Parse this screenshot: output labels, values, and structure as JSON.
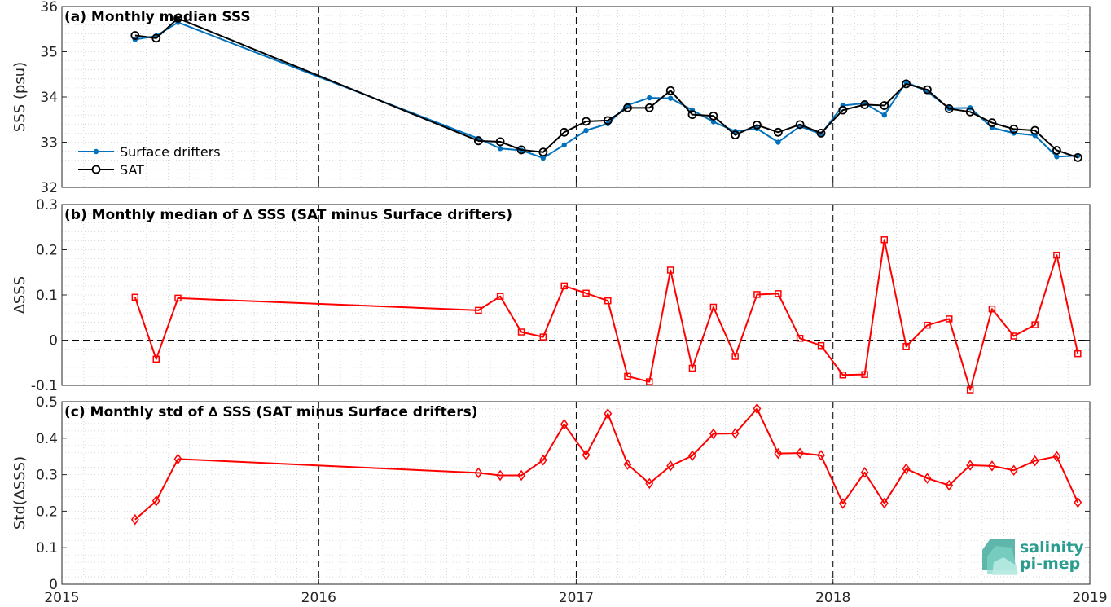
{
  "logo": {
    "line1": "salinity",
    "line2": "pi-mep"
  },
  "chart_data": [
    {
      "type": "line",
      "title": "(a) Monthly median SSS",
      "xlabel": "",
      "ylabel": "SSS (psu)",
      "x_ticks": [
        "2015",
        "2016",
        "2017",
        "2018",
        "2019"
      ],
      "xlim": [
        "2015-01-01",
        "2019-01-01"
      ],
      "ylim": [
        32,
        36
      ],
      "y_ticks": [
        "32",
        "33",
        "34",
        "35",
        "36"
      ],
      "grid": true,
      "legend": "lower-left",
      "x": [
        "2015-04-15",
        "2015-05-15",
        "2015-06-15",
        "2016-08-15",
        "2016-09-15",
        "2016-10-15",
        "2016-11-15",
        "2016-12-15",
        "2017-01-15",
        "2017-02-15",
        "2017-03-15",
        "2017-04-15",
        "2017-05-15",
        "2017-06-15",
        "2017-07-15",
        "2017-08-15",
        "2017-09-15",
        "2017-10-15",
        "2017-11-15",
        "2017-12-15",
        "2018-01-15",
        "2018-02-15",
        "2018-03-15",
        "2018-04-15",
        "2018-05-15",
        "2018-06-15",
        "2018-07-15",
        "2018-08-15",
        "2018-09-15",
        "2018-10-15",
        "2018-11-15",
        "2018-12-15"
      ],
      "series": [
        {
          "name": "Surface drifters",
          "color": "#0072bd",
          "marker": "dot",
          "values": [
            35.27,
            35.35,
            35.65,
            33.08,
            32.86,
            32.82,
            32.65,
            32.94,
            33.26,
            33.41,
            33.82,
            33.98,
            33.97,
            33.71,
            33.45,
            33.24,
            33.3,
            33.0,
            33.35,
            33.18,
            33.81,
            33.86,
            33.6,
            34.33,
            34.12,
            33.75,
            33.76,
            33.32,
            33.2,
            33.15,
            32.68,
            32.7
          ]
        },
        {
          "name": "SAT",
          "color": "#000000",
          "marker": "circle",
          "values": [
            35.36,
            35.3,
            35.74,
            33.03,
            33.01,
            32.83,
            32.78,
            33.22,
            33.46,
            33.48,
            33.76,
            33.76,
            34.14,
            33.61,
            33.58,
            33.16,
            33.38,
            33.22,
            33.39,
            33.2,
            33.71,
            33.83,
            33.81,
            34.29,
            34.16,
            33.74,
            33.67,
            33.43,
            33.29,
            33.26,
            32.82,
            32.66
          ]
        }
      ]
    },
    {
      "type": "line",
      "title": "(b) Monthly median of ∆ SSS (SAT minus Surface drifters)",
      "xlabel": "",
      "ylabel": "∆SSS",
      "x_ticks": [
        "2015",
        "2016",
        "2017",
        "2018",
        "2019"
      ],
      "xlim": [
        "2015-01-01",
        "2019-01-01"
      ],
      "ylim": [
        -0.1,
        0.3
      ],
      "y_ticks": [
        "-0.1",
        "0",
        "0.1",
        "0.2",
        "0.3"
      ],
      "grid": true,
      "zero_line": true,
      "x": [
        "2015-04-15",
        "2015-05-15",
        "2015-06-15",
        "2016-08-15",
        "2016-09-15",
        "2016-10-15",
        "2016-11-15",
        "2016-12-15",
        "2017-01-15",
        "2017-02-15",
        "2017-03-15",
        "2017-04-15",
        "2017-05-15",
        "2017-06-15",
        "2017-07-15",
        "2017-08-15",
        "2017-09-15",
        "2017-10-15",
        "2017-11-15",
        "2017-12-15",
        "2018-01-15",
        "2018-02-15",
        "2018-03-15",
        "2018-04-15",
        "2018-05-15",
        "2018-06-15",
        "2018-07-15",
        "2018-08-15",
        "2018-09-15",
        "2018-10-15",
        "2018-11-15",
        "2018-12-15"
      ],
      "series": [
        {
          "color": "#ff0000",
          "marker": "square",
          "values": [
            0.095,
            -0.042,
            0.093,
            0.066,
            0.097,
            0.018,
            0.007,
            0.12,
            0.104,
            0.087,
            -0.08,
            -0.092,
            0.155,
            -0.062,
            0.073,
            -0.036,
            0.101,
            0.103,
            0.004,
            -0.012,
            -0.077,
            -0.076,
            0.222,
            -0.014,
            0.033,
            0.047,
            -0.11,
            0.069,
            0.009,
            0.034,
            0.188,
            -0.03
          ]
        }
      ]
    },
    {
      "type": "line",
      "title": "(c) Monthly std of ∆ SSS (SAT minus Surface drifters)",
      "xlabel": "",
      "ylabel": "Std(∆SSS)",
      "x_ticks": [
        "2015",
        "2016",
        "2017",
        "2018",
        "2019"
      ],
      "xlim": [
        "2015-01-01",
        "2019-01-01"
      ],
      "ylim": [
        0,
        0.5
      ],
      "y_ticks": [
        "0",
        "0.1",
        "0.2",
        "0.3",
        "0.4",
        "0.5"
      ],
      "grid": true,
      "x": [
        "2015-04-15",
        "2015-05-15",
        "2015-06-15",
        "2016-08-15",
        "2016-09-15",
        "2016-10-15",
        "2016-11-15",
        "2016-12-15",
        "2017-01-15",
        "2017-02-15",
        "2017-03-15",
        "2017-04-15",
        "2017-05-15",
        "2017-06-15",
        "2017-07-15",
        "2017-08-15",
        "2017-09-15",
        "2017-10-15",
        "2017-11-15",
        "2017-12-15",
        "2018-01-15",
        "2018-02-15",
        "2018-03-15",
        "2018-04-15",
        "2018-05-15",
        "2018-06-15",
        "2018-07-15",
        "2018-08-15",
        "2018-09-15",
        "2018-10-15",
        "2018-11-15",
        "2018-12-15"
      ],
      "series": [
        {
          "color": "#ff0000",
          "marker": "diamond",
          "values": [
            0.177,
            0.228,
            0.343,
            0.305,
            0.298,
            0.298,
            0.34,
            0.438,
            0.354,
            0.467,
            0.328,
            0.276,
            0.324,
            0.352,
            0.412,
            0.413,
            0.481,
            0.358,
            0.359,
            0.353,
            0.221,
            0.306,
            0.222,
            0.316,
            0.29,
            0.271,
            0.326,
            0.324,
            0.312,
            0.338,
            0.35,
            0.224
          ]
        }
      ]
    }
  ]
}
